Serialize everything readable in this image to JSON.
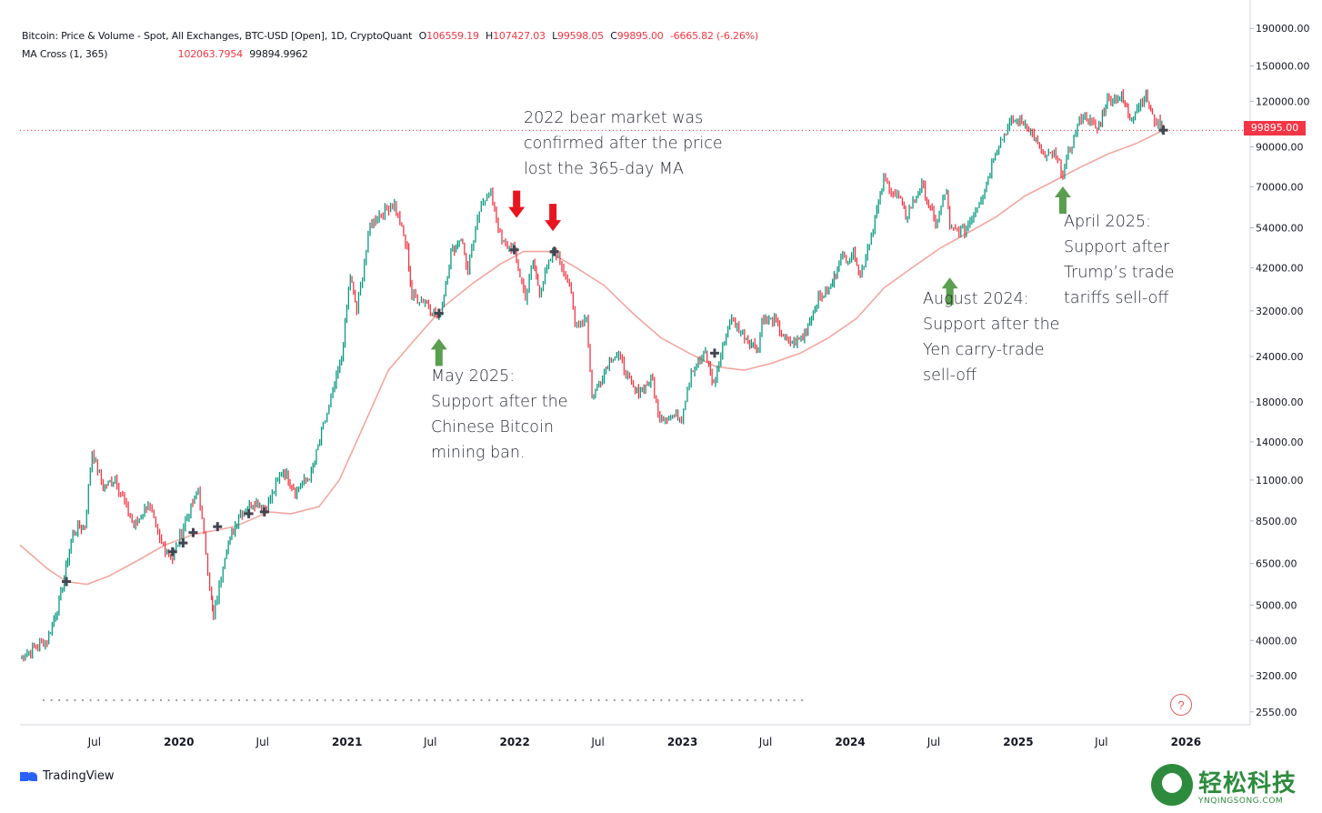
{
  "legend": {
    "title": "Bitcoin: Price & Volume - Spot, All Exchanges, BTC-USD [Open], 1D, CryptoQuant",
    "open_label": "O",
    "open": "106559.19",
    "high_label": "H",
    "high": "107427.03",
    "low_label": "L",
    "low": "99598.05",
    "close_label": "C",
    "close": "99895.00",
    "change": "-6665.82 (-6.26%)",
    "ma_name": "MA Cross (1, 365)",
    "ma_fast": "102063.7954",
    "ma_slow": "99894.9962"
  },
  "price_badge": "99895.00",
  "annotations": {
    "bear": [
      "2022 bear market was",
      "confirmed after the price",
      "lost the 365-day MA"
    ],
    "may": [
      "May 2025:",
      "Support after the",
      "Chinese Bitcoin",
      "mining ban."
    ],
    "aug": [
      "August 2024:",
      "Support after the",
      "Yen carry-trade",
      "sell-off"
    ],
    "apr": [
      "April 2025:",
      "Support after",
      "Trump’s trade",
      "tariffs sell-off"
    ]
  },
  "branding": {
    "tradingview": "TradingView",
    "watermark_cn": "轻松科技",
    "watermark_en": "YNQINGSONG.COM",
    "help": "?"
  },
  "colors": {
    "up": "#089981",
    "down": "#f23645",
    "ma": "#f4a6a0",
    "arrow_green": "#5a9e4f",
    "arrow_red": "#e8141e"
  },
  "chart_data": {
    "type": "line",
    "title": "Bitcoin: Price & Volume - Spot, All Exchanges, BTC-USD [Open], 1D, CryptoQuant",
    "y_scale": "log",
    "ylim": [
      2350,
      205000
    ],
    "xlim": [
      "2019-01-20",
      "2026-05-01"
    ],
    "y_ticks": [
      190000,
      150000,
      120000,
      90000,
      70000,
      54000,
      42000,
      32000,
      24000,
      18000,
      14000,
      11000,
      8500,
      6500,
      5000,
      4000,
      3200,
      2550
    ],
    "x_ticks": [
      {
        "date": "2019-07-01",
        "label": "Jul"
      },
      {
        "date": "2020-01-01",
        "label": "2020"
      },
      {
        "date": "2020-07-01",
        "label": "Jul"
      },
      {
        "date": "2021-01-01",
        "label": "2021"
      },
      {
        "date": "2021-07-01",
        "label": "Jul"
      },
      {
        "date": "2022-01-01",
        "label": "2022"
      },
      {
        "date": "2022-07-01",
        "label": "Jul"
      },
      {
        "date": "2023-01-01",
        "label": "2023"
      },
      {
        "date": "2023-07-01",
        "label": "Jul"
      },
      {
        "date": "2024-01-01",
        "label": "2024"
      },
      {
        "date": "2024-07-01",
        "label": "Jul"
      },
      {
        "date": "2025-01-01",
        "label": "2025"
      },
      {
        "date": "2025-07-01",
        "label": "Jul"
      },
      {
        "date": "2026-01-01",
        "label": "2026"
      }
    ],
    "series": [
      {
        "name": "Bitcoin: Price & Volume - Spot, All Exchanges, BTC-USD [Open], 1D, CryptoQuant",
        "points": [
          [
            "2019-01-20",
            3600
          ],
          [
            "2019-02-20",
            3800
          ],
          [
            "2019-03-20",
            4000
          ],
          [
            "2019-04-15",
            5100
          ],
          [
            "2019-05-15",
            7900
          ],
          [
            "2019-06-10",
            8300
          ],
          [
            "2019-06-26",
            13200
          ],
          [
            "2019-07-20",
            10500
          ],
          [
            "2019-08-15",
            11100
          ],
          [
            "2019-09-25",
            8200
          ],
          [
            "2019-10-26",
            9500
          ],
          [
            "2019-11-20",
            7500
          ],
          [
            "2019-12-18",
            6700
          ],
          [
            "2020-01-15",
            8500
          ],
          [
            "2020-02-12",
            10300
          ],
          [
            "2020-03-12",
            5200
          ],
          [
            "2020-03-16",
            4600
          ],
          [
            "2020-04-10",
            6900
          ],
          [
            "2020-05-10",
            8800
          ],
          [
            "2020-06-10",
            9600
          ],
          [
            "2020-07-10",
            9300
          ],
          [
            "2020-08-15",
            11800
          ],
          [
            "2020-09-10",
            10300
          ],
          [
            "2020-10-15",
            11400
          ],
          [
            "2020-11-10",
            15400
          ],
          [
            "2020-12-01",
            19000
          ],
          [
            "2020-12-20",
            24000
          ],
          [
            "2021-01-08",
            40000
          ],
          [
            "2021-01-22",
            32000
          ],
          [
            "2021-02-20",
            55000
          ],
          [
            "2021-03-12",
            59000
          ],
          [
            "2021-04-14",
            63000
          ],
          [
            "2021-05-12",
            47000
          ],
          [
            "2021-05-22",
            35000
          ],
          [
            "2021-06-20",
            34000
          ],
          [
            "2021-07-20",
            30000
          ],
          [
            "2021-08-15",
            46000
          ],
          [
            "2021-09-06",
            51000
          ],
          [
            "2021-09-21",
            41000
          ],
          [
            "2021-10-20",
            64000
          ],
          [
            "2021-11-10",
            67500
          ],
          [
            "2021-12-04",
            49000
          ],
          [
            "2021-12-28",
            47500
          ],
          [
            "2022-01-24",
            35000
          ],
          [
            "2022-02-10",
            44000
          ],
          [
            "2022-02-24",
            36000
          ],
          [
            "2022-03-28",
            47500
          ],
          [
            "2022-04-30",
            38000
          ],
          [
            "2022-05-12",
            29000
          ],
          [
            "2022-06-06",
            31000
          ],
          [
            "2022-06-18",
            18500
          ],
          [
            "2022-07-30",
            24000
          ],
          [
            "2022-08-15",
            24200
          ],
          [
            "2022-09-20",
            19000
          ],
          [
            "2022-10-28",
            20600
          ],
          [
            "2022-11-09",
            16500
          ],
          [
            "2022-12-30",
            16500
          ],
          [
            "2023-01-20",
            22000
          ],
          [
            "2023-02-20",
            24500
          ],
          [
            "2023-03-10",
            20000
          ],
          [
            "2023-04-14",
            30500
          ],
          [
            "2023-05-20",
            27000
          ],
          [
            "2023-06-15",
            25000
          ],
          [
            "2023-06-23",
            30500
          ],
          [
            "2023-07-20",
            30000
          ],
          [
            "2023-08-20",
            26000
          ],
          [
            "2023-09-20",
            27000
          ],
          [
            "2023-10-24",
            34500
          ],
          [
            "2023-11-20",
            37000
          ],
          [
            "2023-12-08",
            44000
          ],
          [
            "2024-01-12",
            46000
          ],
          [
            "2024-01-23",
            39500
          ],
          [
            "2024-02-28",
            60000
          ],
          [
            "2024-03-14",
            73000
          ],
          [
            "2024-04-20",
            64000
          ],
          [
            "2024-05-01",
            58000
          ],
          [
            "2024-06-05",
            71000
          ],
          [
            "2024-07-05",
            55000
          ],
          [
            "2024-07-29",
            69000
          ],
          [
            "2024-08-05",
            53000
          ],
          [
            "2024-09-06",
            53000
          ],
          [
            "2024-10-20",
            68500
          ],
          [
            "2024-11-12",
            88000
          ],
          [
            "2024-12-17",
            106000
          ],
          [
            "2025-01-20",
            104000
          ],
          [
            "2025-02-28",
            84000
          ],
          [
            "2025-03-20",
            86000
          ],
          [
            "2025-04-08",
            76500
          ],
          [
            "2025-05-10",
            103000
          ],
          [
            "2025-05-22",
            111000
          ],
          [
            "2025-06-22",
            100000
          ],
          [
            "2025-07-14",
            122000
          ],
          [
            "2025-08-14",
            123500
          ],
          [
            "2025-09-01",
            108000
          ],
          [
            "2025-10-06",
            125000
          ],
          [
            "2025-10-20",
            108000
          ],
          [
            "2025-11-06",
            103000
          ],
          [
            "2025-11-13",
            99895
          ]
        ]
      },
      {
        "name": "MA Cross (1, 365)",
        "points": [
          [
            "2019-01-20",
            7300
          ],
          [
            "2019-03-20",
            6300
          ],
          [
            "2019-05-01",
            5800
          ],
          [
            "2019-06-15",
            5700
          ],
          [
            "2019-08-01",
            6000
          ],
          [
            "2019-10-01",
            6600
          ],
          [
            "2019-12-01",
            7300
          ],
          [
            "2020-02-01",
            7800
          ],
          [
            "2020-05-01",
            8200
          ],
          [
            "2020-07-15",
            9000
          ],
          [
            "2020-09-01",
            8900
          ],
          [
            "2020-11-01",
            9300
          ],
          [
            "2020-12-15",
            11000
          ],
          [
            "2021-02-01",
            15000
          ],
          [
            "2021-04-01",
            22000
          ],
          [
            "2021-06-01",
            27000
          ],
          [
            "2021-08-01",
            33000
          ],
          [
            "2021-10-01",
            38000
          ],
          [
            "2021-12-01",
            43000
          ],
          [
            "2022-01-20",
            46500
          ],
          [
            "2022-03-15",
            46500
          ],
          [
            "2022-05-15",
            42000
          ],
          [
            "2022-07-15",
            37500
          ],
          [
            "2022-09-15",
            31500
          ],
          [
            "2022-11-15",
            27000
          ],
          [
            "2023-01-15",
            24500
          ],
          [
            "2023-03-15",
            22500
          ],
          [
            "2023-05-15",
            22000
          ],
          [
            "2023-07-15",
            23000
          ],
          [
            "2023-09-15",
            24500
          ],
          [
            "2023-11-15",
            27000
          ],
          [
            "2024-01-15",
            30500
          ],
          [
            "2024-03-15",
            37000
          ],
          [
            "2024-05-15",
            42000
          ],
          [
            "2024-07-15",
            47500
          ],
          [
            "2024-09-15",
            52500
          ],
          [
            "2024-11-15",
            58000
          ],
          [
            "2025-01-15",
            66000
          ],
          [
            "2025-03-15",
            72000
          ],
          [
            "2025-05-15",
            79000
          ],
          [
            "2025-07-15",
            86000
          ],
          [
            "2025-09-15",
            92000
          ],
          [
            "2025-11-13",
            100000
          ]
        ]
      }
    ],
    "markers": [
      {
        "kind": "up_arrow",
        "date": "2021-07-20",
        "value": 24500
      },
      {
        "kind": "down_arrow",
        "date": "2022-01-05",
        "value": 63000
      },
      {
        "kind": "down_arrow",
        "date": "2022-03-25",
        "value": 58000
      },
      {
        "kind": "up_arrow",
        "date": "2024-08-05",
        "value": 36000
      },
      {
        "kind": "up_arrow",
        "date": "2025-04-08",
        "value": 64000
      }
    ],
    "cross_points": [
      [
        "2019-05-01",
        5800
      ],
      [
        "2019-12-18",
        7000
      ],
      [
        "2020-01-10",
        7400
      ],
      [
        "2020-02-01",
        7900
      ],
      [
        "2020-03-25",
        8200
      ],
      [
        "2020-06-01",
        8900
      ],
      [
        "2020-07-05",
        9000
      ],
      [
        "2021-07-20",
        31500
      ],
      [
        "2021-12-31",
        47000
      ],
      [
        "2022-03-28",
        46500
      ],
      [
        "2023-03-12",
        24500
      ],
      [
        "2025-11-13",
        100000
      ]
    ],
    "grid": false,
    "legend": "top-left"
  }
}
